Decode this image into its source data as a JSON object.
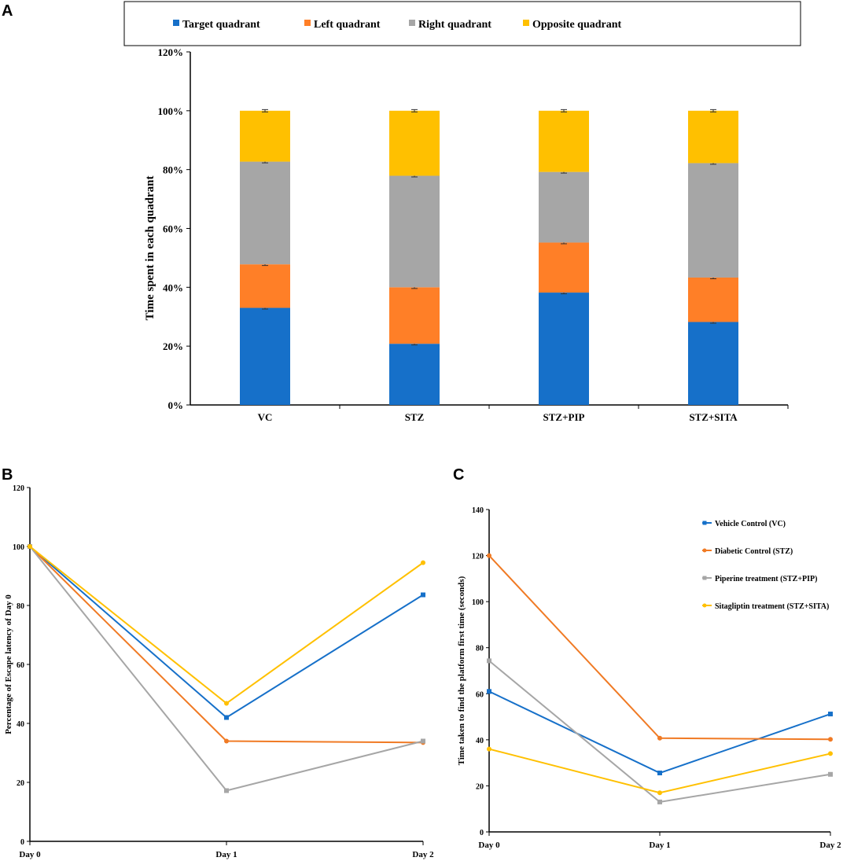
{
  "panels": {
    "a": "A",
    "b": "B",
    "c": "C"
  },
  "chart_data": [
    {
      "type": "bar",
      "stacked": true,
      "title": "",
      "xlabel": "",
      "ylabel": "Time spent in each quadrant",
      "ylim": [
        0,
        120
      ],
      "yticks": [
        "0%",
        "20%",
        "40%",
        "60%",
        "80%",
        "100%",
        "120%"
      ],
      "categories": [
        "VC",
        "STZ",
        "STZ+PIP",
        "STZ+SITA"
      ],
      "legend_position": "top",
      "series": [
        {
          "name": "Target quadrant",
          "color": "#1670C9",
          "values": [
            33,
            20.8,
            38.2,
            28.2
          ]
        },
        {
          "name": "Left quadrant",
          "color": "#FF7F27",
          "values": [
            14.8,
            19.2,
            17,
            15.1
          ]
        },
        {
          "name": "Right quadrant",
          "color": "#A6A6A6",
          "values": [
            34.9,
            37.9,
            24,
            38.9
          ]
        },
        {
          "name": "Opposite quadrant",
          "color": "#FFC000",
          "values": [
            17.3,
            22.1,
            20.8,
            17.8
          ]
        }
      ]
    },
    {
      "type": "line",
      "title": "",
      "xlabel": "",
      "ylabel": "Percentage of Escape latency of Day 0",
      "ylim": [
        0,
        120
      ],
      "yticks": [
        "0",
        "20",
        "40",
        "60",
        "80",
        "100",
        "120"
      ],
      "categories": [
        "Day 0",
        "Day 1",
        "Day 2"
      ],
      "series": [
        {
          "name": "Vehicle Control (VC)",
          "color": "#1670C9",
          "marker": "square",
          "values": [
            100,
            42,
            83.6
          ]
        },
        {
          "name": "Diabetic Control (STZ)",
          "color": "#F07A24",
          "marker": "circle",
          "values": [
            100,
            34,
            33.5
          ]
        },
        {
          "name": "Piperine treatment (STZ+PIP)",
          "color": "#A6A6A6",
          "marker": "square",
          "values": [
            100,
            17.2,
            34
          ]
        },
        {
          "name": "Sitagliptin treatment (STZ+SITA)",
          "color": "#FFC000",
          "marker": "circle",
          "values": [
            100,
            46.8,
            94.5
          ]
        }
      ]
    },
    {
      "type": "line",
      "title": "",
      "xlabel": "",
      "ylabel": "Time taken to find the platform first time (seconds)",
      "ylim": [
        0,
        140
      ],
      "yticks": [
        "0",
        "20",
        "40",
        "60",
        "80",
        "100",
        "120",
        "140"
      ],
      "categories": [
        "Day 0",
        "Day 1",
        "Day 2"
      ],
      "legend_position": "top-right",
      "series": [
        {
          "name": "Vehicle Control (VC)",
          "color": "#1670C9",
          "marker": "square",
          "values": [
            61,
            25.6,
            51.2
          ]
        },
        {
          "name": "Diabetic Control (STZ)",
          "color": "#F07A24",
          "marker": "circle",
          "values": [
            120,
            40.7,
            40.2
          ]
        },
        {
          "name": "Piperine treatment (STZ+PIP)",
          "color": "#A6A6A6",
          "marker": "square",
          "values": [
            74.3,
            13,
            25
          ]
        },
        {
          "name": "Sitagliptin treatment (STZ+SITA)",
          "color": "#FFC000",
          "marker": "circle",
          "values": [
            36,
            17,
            34
          ]
        }
      ]
    }
  ]
}
